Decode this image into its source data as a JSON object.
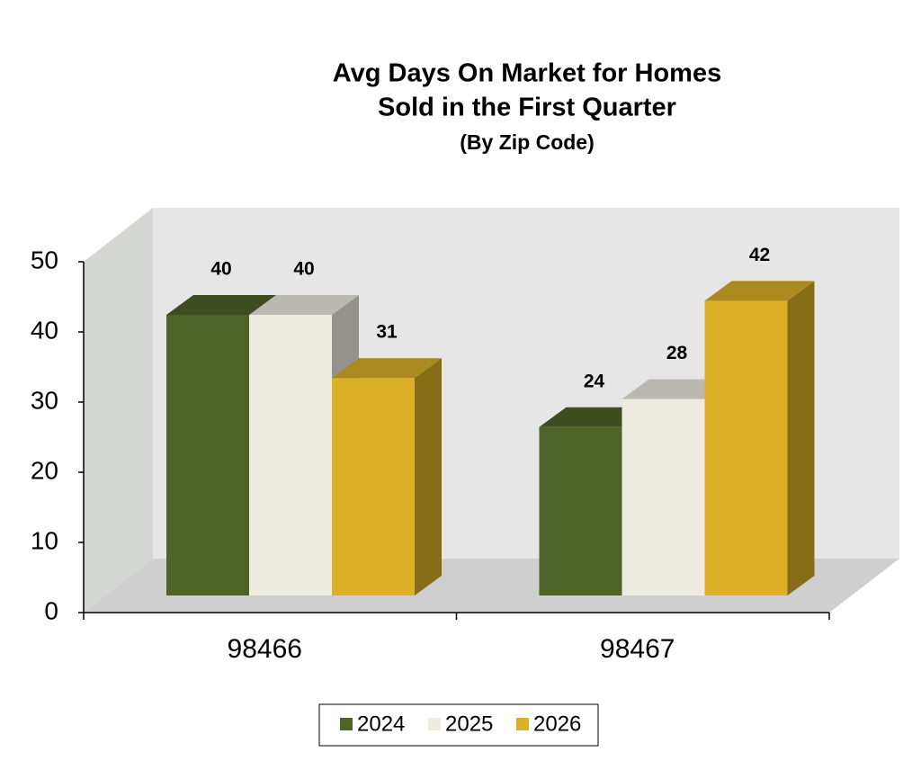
{
  "chart_data": {
    "type": "bar3d",
    "title": [
      "Avg Days On Market for Homes",
      "Sold in the First Quarter"
    ],
    "subtitle": "(By Zip Code)",
    "categories": [
      "98466",
      "98467"
    ],
    "series": [
      {
        "name": "2024",
        "color": "#4f6228",
        "values": [
          40,
          24
        ]
      },
      {
        "name": "2025",
        "color": "#eeece1",
        "values": [
          40,
          28
        ]
      },
      {
        "name": "2026",
        "color": "#dcb026",
        "values": [
          31,
          42
        ]
      }
    ],
    "ylim": [
      0,
      50
    ],
    "yticks": [
      0,
      10,
      20,
      30,
      40,
      50
    ],
    "legend": "bottom"
  }
}
